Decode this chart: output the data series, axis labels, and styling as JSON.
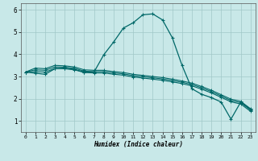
{
  "xlabel": "Humidex (Indice chaleur)",
  "xlim": [
    -0.5,
    23.5
  ],
  "ylim": [
    0.5,
    6.3
  ],
  "yticks": [
    1,
    2,
    3,
    4,
    5,
    6
  ],
  "xticks": [
    0,
    1,
    2,
    3,
    4,
    5,
    6,
    7,
    8,
    9,
    10,
    11,
    12,
    13,
    14,
    15,
    16,
    17,
    18,
    19,
    20,
    21,
    22,
    23
  ],
  "background_color": "#c8e8e8",
  "grid_color": "#a0c8c8",
  "line_color": "#006868",
  "line1_x": [
    0,
    1,
    2,
    3,
    4,
    5,
    6,
    7,
    8,
    9,
    10,
    11,
    12,
    13,
    14,
    15,
    16,
    17,
    18,
    19,
    20,
    21,
    22,
    23
  ],
  "line1_y": [
    3.2,
    3.38,
    3.35,
    3.5,
    3.48,
    3.43,
    3.3,
    3.28,
    3.28,
    3.22,
    3.18,
    3.1,
    3.05,
    3.0,
    2.95,
    2.88,
    2.8,
    2.7,
    2.55,
    2.38,
    2.18,
    1.98,
    1.88,
    1.55
  ],
  "line2_x": [
    0,
    1,
    2,
    3,
    4,
    5,
    6,
    7,
    8,
    9,
    10,
    11,
    12,
    13,
    14,
    15,
    16,
    17,
    18,
    19,
    20,
    21,
    22,
    23
  ],
  "line2_y": [
    3.2,
    3.3,
    3.28,
    3.43,
    3.42,
    3.37,
    3.24,
    3.22,
    3.22,
    3.16,
    3.12,
    3.04,
    2.99,
    2.94,
    2.89,
    2.82,
    2.74,
    2.64,
    2.49,
    2.32,
    2.12,
    1.92,
    1.82,
    1.49
  ],
  "line3_x": [
    0,
    1,
    2,
    3,
    4,
    5,
    6,
    7,
    8,
    9,
    10,
    11,
    12,
    13,
    14,
    15,
    16,
    17,
    18,
    19,
    20,
    21,
    22,
    23
  ],
  "line3_y": [
    3.2,
    3.22,
    3.2,
    3.36,
    3.35,
    3.3,
    3.18,
    3.16,
    3.16,
    3.1,
    3.06,
    2.98,
    2.93,
    2.88,
    2.83,
    2.76,
    2.68,
    2.58,
    2.43,
    2.26,
    2.06,
    1.86,
    1.76,
    1.43
  ],
  "line4_x": [
    0,
    1,
    2,
    3,
    4,
    5,
    6,
    7,
    8,
    9,
    10,
    11,
    12,
    13,
    14,
    15,
    16,
    17,
    18,
    19,
    20,
    21,
    22,
    23
  ],
  "line4_y": [
    3.2,
    3.15,
    3.1,
    3.35,
    3.38,
    3.32,
    3.2,
    3.2,
    3.98,
    4.55,
    5.18,
    5.42,
    5.78,
    5.82,
    5.55,
    4.75,
    3.5,
    2.45,
    2.2,
    2.05,
    1.85,
    1.08,
    1.85,
    1.52
  ]
}
